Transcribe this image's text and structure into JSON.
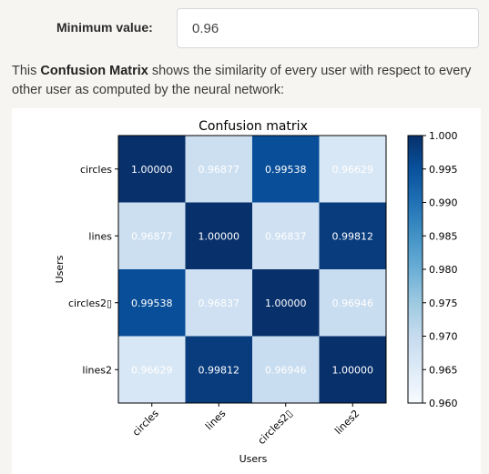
{
  "form": {
    "min_label": "Minimum value:",
    "min_value": "0.96"
  },
  "description": {
    "prefix": "This ",
    "bold": "Confusion Matrix",
    "suffix": " shows the similarity of every user with respect to every other user as computed by the neural network:"
  },
  "chart_data": {
    "type": "heatmap",
    "title": "Confusion matrix",
    "xlabel": "Users",
    "ylabel": "Users",
    "x_categories": [
      "circles",
      "lines",
      "circles2▯",
      "lines2"
    ],
    "y_categories": [
      "circles",
      "lines",
      "circles2▯",
      "lines2"
    ],
    "values": [
      [
        1.0,
        0.96877,
        0.99538,
        0.96629
      ],
      [
        0.96877,
        1.0,
        0.96837,
        0.99812
      ],
      [
        0.99538,
        0.96837,
        1.0,
        0.96946
      ],
      [
        0.96629,
        0.99812,
        0.96946,
        1.0
      ]
    ],
    "cell_labels": [
      [
        "1.00000",
        "0.96877",
        "0.99538",
        "0.96629"
      ],
      [
        "0.96877",
        "1.00000",
        "0.96837",
        "0.99812"
      ],
      [
        "0.99538",
        "0.96837",
        "1.00000",
        "0.96946"
      ],
      [
        "0.96629",
        "0.99812",
        "0.96946",
        "1.00000"
      ]
    ],
    "colormap": "Blues",
    "color_range": [
      0.96,
      1.0
    ],
    "colorbar_ticks": [
      "1.000",
      "0.995",
      "0.990",
      "0.985",
      "0.980",
      "0.975",
      "0.970",
      "0.965",
      "0.960"
    ],
    "colorbar_tick_values": [
      1.0,
      0.995,
      0.99,
      0.985,
      0.98,
      0.975,
      0.97,
      0.965,
      0.96
    ],
    "cell_text_color": "#ffffff"
  }
}
